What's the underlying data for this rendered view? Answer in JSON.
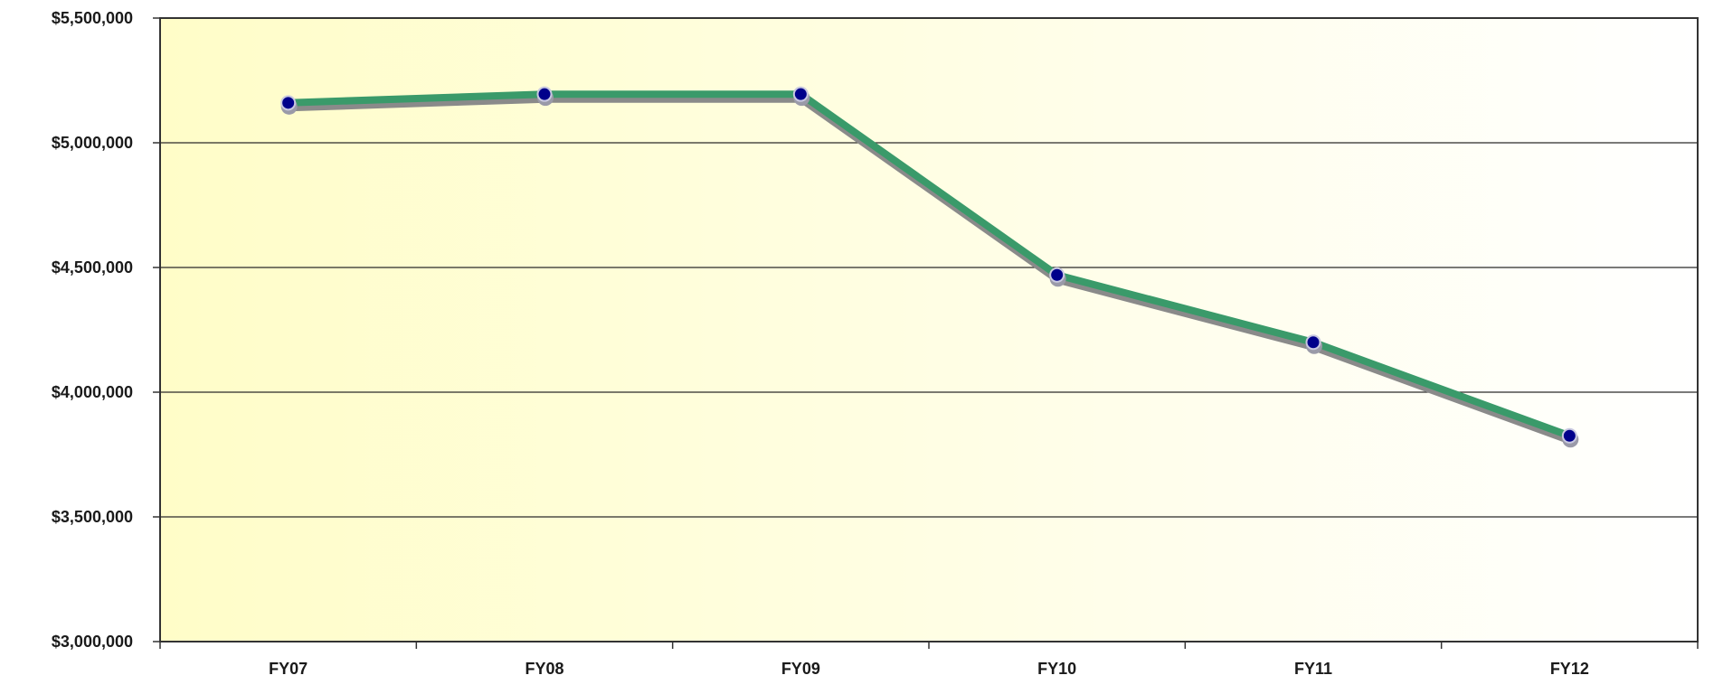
{
  "chart_data": {
    "type": "line",
    "title": "",
    "xlabel": "",
    "ylabel": "",
    "categories": [
      "FY07",
      "FY08",
      "FY09",
      "FY10",
      "FY11",
      "FY12"
    ],
    "series": [
      {
        "values": [
          5160000,
          5195000,
          5195000,
          4470000,
          4200000,
          3825000
        ],
        "color": "#3a9a6a",
        "marker_color": "#00008b"
      }
    ],
    "ylim": [
      3000000,
      5500000
    ],
    "y_ticks": [
      3000000,
      3500000,
      4000000,
      4500000,
      5000000,
      5500000
    ],
    "y_tick_labels": [
      "$3,000,000",
      "$3,500,000",
      "$4,000,000",
      "$4,500,000",
      "$5,000,000",
      "$5,500,000"
    ],
    "grid": true,
    "legend": "none",
    "background_gradient": [
      "#fffdc8",
      "#ffffff"
    ]
  }
}
